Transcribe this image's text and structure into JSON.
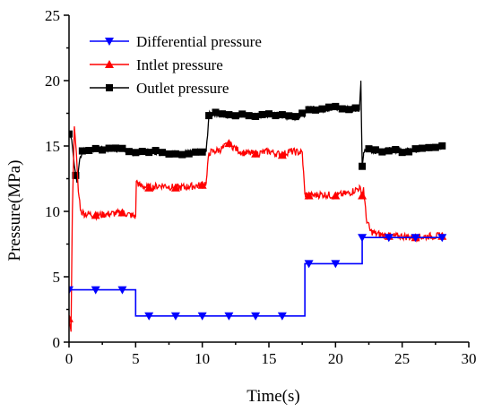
{
  "chart_data": {
    "type": "line",
    "xlabel": "Time(s)",
    "ylabel": "Pressure(MPa)",
    "xlim": [
      0,
      30
    ],
    "ylim": [
      0,
      25
    ],
    "x_ticks": [
      0,
      5,
      10,
      15,
      20,
      25,
      30
    ],
    "y_ticks": [
      0,
      5,
      10,
      15,
      20,
      25
    ],
    "grid": false,
    "legend_position": "top-left",
    "series": [
      {
        "name": "Differential pressure",
        "color": "#0000ff",
        "marker": "triangle-down",
        "x": [
          0,
          0.05,
          2,
          4,
          5,
          5,
          6,
          8,
          10,
          12,
          14,
          16,
          17.7,
          17.7,
          18,
          20,
          22,
          22,
          24,
          26,
          28
        ],
        "y": [
          4,
          4,
          4,
          4,
          4,
          2,
          2,
          2,
          2,
          2,
          2,
          2,
          2,
          6,
          6,
          6,
          6,
          8,
          8,
          8,
          8
        ],
        "markers_at": [
          0,
          2,
          4,
          6,
          8,
          10,
          12,
          14,
          16,
          18,
          20,
          22,
          24,
          26,
          28
        ]
      },
      {
        "name": "Intlet pressure",
        "color": "#ff0000",
        "marker": "triangle-up",
        "x": [
          0,
          0.15,
          0.25,
          0.4,
          0.55,
          0.7,
          0.9,
          1.2,
          1.5,
          2,
          3,
          4,
          5,
          5.05,
          5.3,
          6,
          7,
          8,
          9,
          10,
          10.3,
          10.5,
          11,
          11.5,
          12,
          12.5,
          13,
          14,
          15,
          16,
          16.5,
          17.5,
          17.7,
          18,
          19,
          20,
          21,
          21.8,
          22,
          22.1,
          22.3,
          22.6,
          23,
          24,
          25,
          26,
          27,
          28
        ],
        "y": [
          1.8,
          0.8,
          10,
          16.5,
          14.5,
          11.5,
          10,
          9.8,
          9.8,
          9.7,
          9.8,
          9.9,
          9.6,
          12.3,
          12,
          11.8,
          12,
          11.8,
          11.9,
          12,
          12.2,
          14.5,
          14.6,
          14.8,
          15.2,
          14.8,
          14.5,
          14.4,
          14.6,
          14.3,
          14.6,
          14.5,
          11.3,
          11.2,
          11.3,
          11.2,
          11.4,
          11.8,
          11.2,
          11.8,
          9.5,
          8.5,
          8.3,
          8.1,
          8.1,
          8,
          8.1,
          8.1
        ],
        "markers_at": [
          0,
          2,
          4,
          6,
          8,
          10,
          12,
          14,
          16,
          18,
          20,
          22,
          24,
          26,
          28
        ]
      },
      {
        "name": "Outlet pressure",
        "color": "#000000",
        "marker": "square",
        "x": [
          0,
          0.2,
          0.4,
          0.6,
          0.8,
          1,
          1.5,
          2,
          3,
          4,
          5,
          6,
          7,
          8,
          9,
          10,
          10.3,
          10.5,
          11,
          12,
          13,
          14,
          15,
          16,
          17,
          17.8,
          18,
          19,
          20,
          21,
          21.8,
          21.9,
          22,
          22.1,
          22.3,
          23,
          24,
          25,
          26,
          27,
          28
        ],
        "y": [
          16,
          15.5,
          13.5,
          12.2,
          14,
          14.6,
          14.7,
          14.8,
          14.8,
          14.7,
          14.5,
          14.6,
          14.5,
          14.4,
          14.5,
          14.5,
          14.6,
          17.4,
          17.5,
          17.3,
          17.4,
          17.2,
          17.4,
          17.3,
          17.2,
          17.5,
          17.9,
          17.8,
          17.9,
          17.9,
          17.8,
          19.8,
          13.5,
          14.3,
          14.8,
          14.6,
          14.7,
          14.6,
          14.7,
          14.8,
          15
        ]
      }
    ]
  }
}
